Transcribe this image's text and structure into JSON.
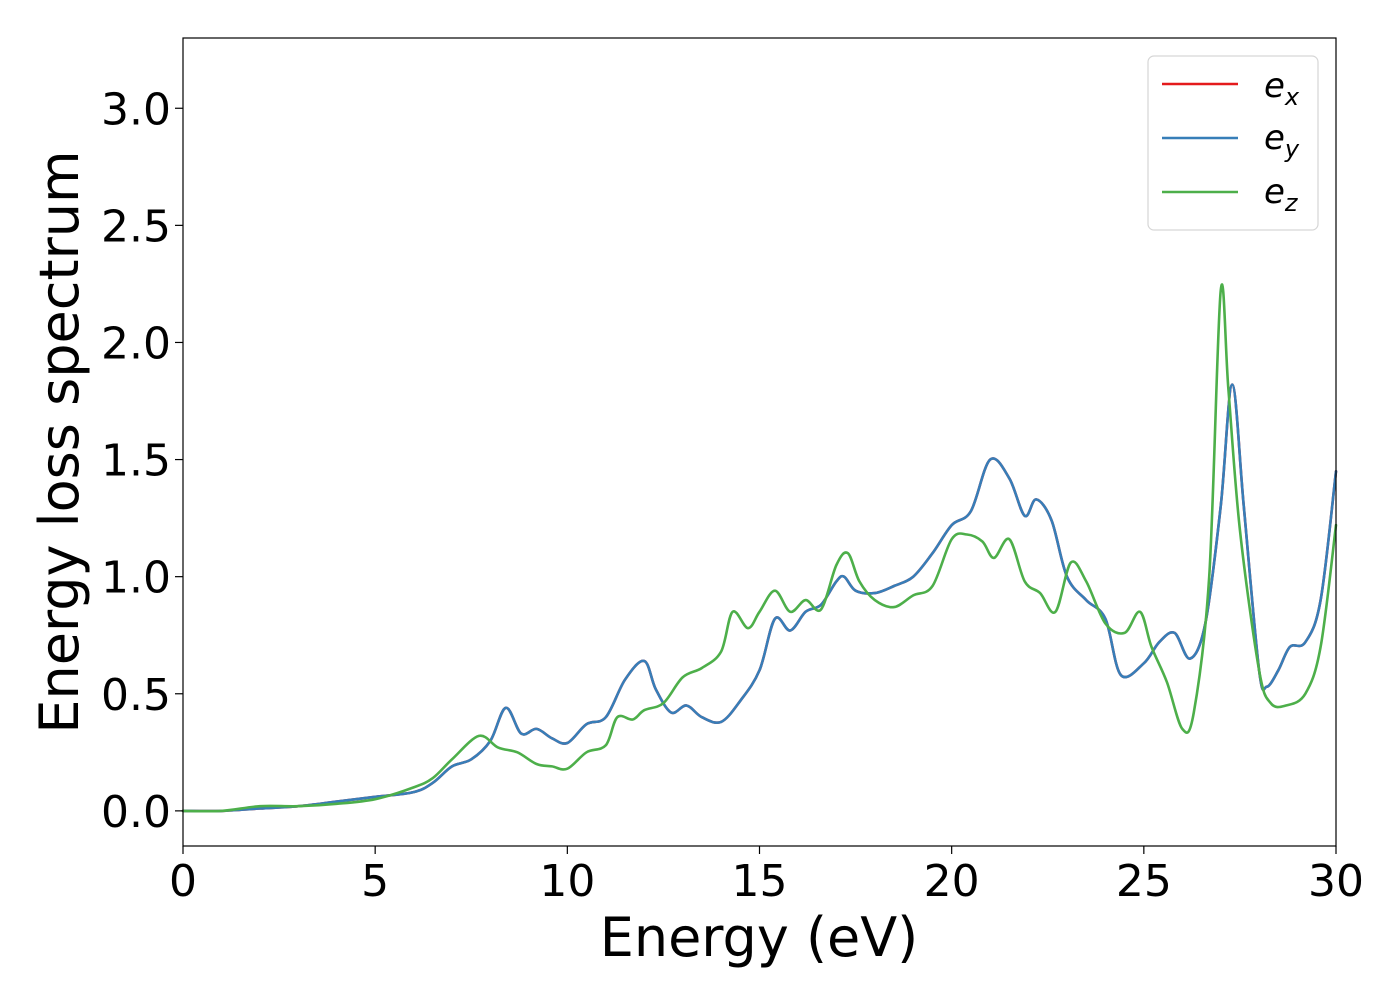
{
  "chart_data": {
    "type": "line",
    "title": "",
    "xlabel": "Energy (eV)",
    "ylabel": "Energy loss spectrum",
    "xlim": [
      0,
      30
    ],
    "ylim": [
      -0.15,
      3.3
    ],
    "xticks": [
      "0",
      "5",
      "10",
      "15",
      "20",
      "25",
      "30"
    ],
    "yticks": [
      "0.0",
      "0.5",
      "1.0",
      "1.5",
      "2.0",
      "2.5",
      "3.0"
    ],
    "grid": false,
    "legend_position": "top-right",
    "series": [
      {
        "name": "e",
        "subscript": "x",
        "color": "#e41a1c",
        "x": [
          0,
          1,
          2,
          3,
          4,
          5,
          6,
          6.5,
          7,
          7.5,
          8,
          8.4,
          8.8,
          9.2,
          9.6,
          10,
          10.5,
          11,
          11.5,
          12,
          12.3,
          12.7,
          13.1,
          13.5,
          14,
          14.5,
          15,
          15.4,
          15.8,
          16.2,
          16.6,
          17,
          17.2,
          17.5,
          18,
          18.5,
          19,
          19.5,
          20,
          20.5,
          21,
          21.5,
          21.9,
          22.2,
          22.6,
          23,
          23.5,
          24,
          24.4,
          25,
          25.4,
          25.8,
          26.2,
          26.6,
          27,
          27.3,
          27.6,
          28,
          28.2,
          28.5,
          28.8,
          29.2,
          29.6,
          30
        ],
        "y": [
          0,
          0,
          0.01,
          0.02,
          0.04,
          0.06,
          0.08,
          0.12,
          0.19,
          0.22,
          0.3,
          0.44,
          0.33,
          0.35,
          0.31,
          0.29,
          0.37,
          0.4,
          0.56,
          0.64,
          0.52,
          0.42,
          0.45,
          0.4,
          0.38,
          0.47,
          0.6,
          0.82,
          0.77,
          0.85,
          0.88,
          0.98,
          1.0,
          0.94,
          0.93,
          0.96,
          1.0,
          1.1,
          1.22,
          1.28,
          1.5,
          1.42,
          1.26,
          1.33,
          1.24,
          1.0,
          0.9,
          0.82,
          0.58,
          0.63,
          0.72,
          0.76,
          0.65,
          0.8,
          1.3,
          1.82,
          1.3,
          0.6,
          0.53,
          0.6,
          0.7,
          0.72,
          0.9,
          1.45
        ]
      },
      {
        "name": "e",
        "subscript": "y",
        "color": "#377eb8",
        "x": [
          0,
          1,
          2,
          3,
          4,
          5,
          6,
          6.5,
          7,
          7.5,
          8,
          8.4,
          8.8,
          9.2,
          9.6,
          10,
          10.5,
          11,
          11.5,
          12,
          12.3,
          12.7,
          13.1,
          13.5,
          14,
          14.5,
          15,
          15.4,
          15.8,
          16.2,
          16.6,
          17,
          17.2,
          17.5,
          18,
          18.5,
          19,
          19.5,
          20,
          20.5,
          21,
          21.5,
          21.9,
          22.2,
          22.6,
          23,
          23.5,
          24,
          24.4,
          25,
          25.4,
          25.8,
          26.2,
          26.6,
          27,
          27.3,
          27.6,
          28,
          28.2,
          28.5,
          28.8,
          29.2,
          29.6,
          30
        ],
        "y": [
          0,
          0,
          0.01,
          0.02,
          0.04,
          0.06,
          0.08,
          0.12,
          0.19,
          0.22,
          0.3,
          0.44,
          0.33,
          0.35,
          0.31,
          0.29,
          0.37,
          0.4,
          0.56,
          0.64,
          0.52,
          0.42,
          0.45,
          0.4,
          0.38,
          0.47,
          0.6,
          0.82,
          0.77,
          0.85,
          0.88,
          0.98,
          1.0,
          0.94,
          0.93,
          0.96,
          1.0,
          1.1,
          1.22,
          1.28,
          1.5,
          1.42,
          1.26,
          1.33,
          1.24,
          1.0,
          0.9,
          0.82,
          0.58,
          0.63,
          0.72,
          0.76,
          0.65,
          0.8,
          1.3,
          1.82,
          1.3,
          0.6,
          0.53,
          0.6,
          0.7,
          0.72,
          0.9,
          1.45
        ]
      },
      {
        "name": "e",
        "subscript": "z",
        "color": "#4daf4a",
        "x": [
          0,
          1,
          2,
          3,
          4,
          5,
          6,
          6.5,
          7,
          7.7,
          8.2,
          8.7,
          9.2,
          9.6,
          10,
          10.5,
          11,
          11.3,
          11.7,
          12,
          12.5,
          13,
          13.5,
          14,
          14.3,
          14.7,
          15,
          15.4,
          15.8,
          16.2,
          16.6,
          17,
          17.3,
          17.6,
          18,
          18.5,
          19,
          19.5,
          20,
          20.4,
          20.8,
          21.1,
          21.5,
          21.9,
          22.3,
          22.7,
          23.1,
          23.5,
          24,
          24.5,
          24.9,
          25.2,
          25.6,
          26,
          26.3,
          26.7,
          27,
          27.2,
          27.5,
          28,
          28.3,
          28.7,
          29.2,
          29.6,
          30
        ],
        "y": [
          0,
          0,
          0.02,
          0.02,
          0.03,
          0.05,
          0.1,
          0.14,
          0.22,
          0.32,
          0.27,
          0.25,
          0.2,
          0.19,
          0.18,
          0.25,
          0.28,
          0.4,
          0.39,
          0.43,
          0.46,
          0.57,
          0.61,
          0.68,
          0.85,
          0.78,
          0.85,
          0.94,
          0.85,
          0.9,
          0.86,
          1.05,
          1.1,
          0.98,
          0.9,
          0.87,
          0.92,
          0.96,
          1.16,
          1.18,
          1.15,
          1.08,
          1.16,
          0.98,
          0.93,
          0.85,
          1.06,
          0.98,
          0.8,
          0.76,
          0.85,
          0.7,
          0.55,
          0.35,
          0.42,
          1.0,
          2.22,
          1.8,
          1.2,
          0.6,
          0.46,
          0.45,
          0.5,
          0.7,
          1.22
        ]
      }
    ]
  }
}
